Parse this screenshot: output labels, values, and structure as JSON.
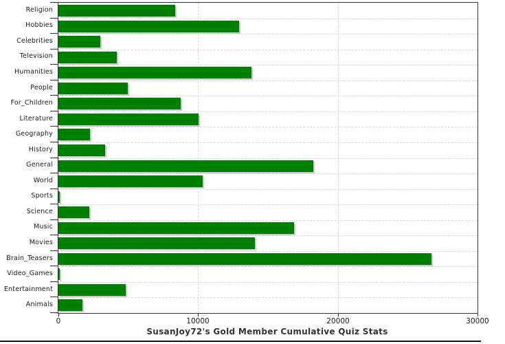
{
  "chart_data": {
    "type": "bar",
    "orientation": "horizontal",
    "title": "SusanJoy72's Gold Member Cumulative Quiz Stats",
    "categories": [
      "Religion",
      "Hobbies",
      "Celebrities",
      "Television",
      "Humanities",
      "People",
      "For_Children",
      "Literature",
      "Geography",
      "History",
      "General",
      "World",
      "Sports",
      "Science",
      "Music",
      "Movies",
      "Brain_Teasers",
      "Video_Games",
      "Entertainment",
      "Animals"
    ],
    "values": [
      8340,
      12930,
      3010,
      4170,
      13810,
      4990,
      8730,
      10050,
      2250,
      3330,
      18250,
      10340,
      100,
      2200,
      16860,
      14070,
      26700,
      100,
      4820,
      1710
    ],
    "xlabel": "",
    "ylabel": "",
    "xlim": [
      0,
      30000
    ],
    "x_ticks": [
      0,
      10000,
      20000,
      30000
    ],
    "x_tick_labels": [
      "0",
      "10000",
      "20000",
      "30000"
    ],
    "grid": true,
    "legend": "none",
    "colors": {
      "bar": "#008000",
      "bar_shadow": "#c9c9c9",
      "gridline": "#d6d6d6",
      "axis": "#333333",
      "text": "#1a1a1a",
      "title": "#333333",
      "background": "#ffffff"
    }
  }
}
